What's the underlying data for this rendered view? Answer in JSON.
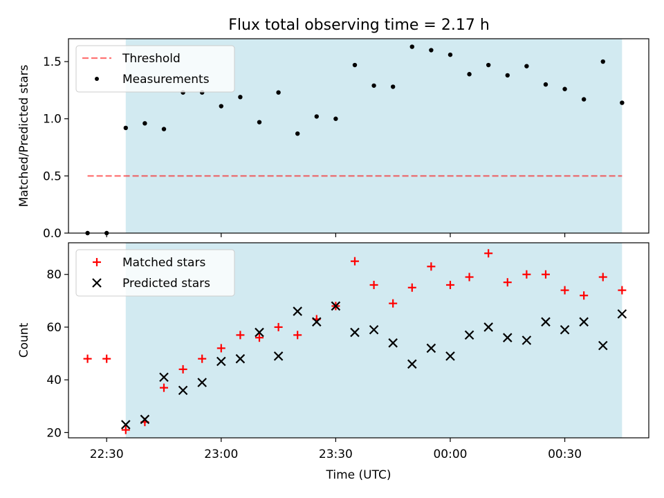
{
  "title": "Flux total observing time = 2.17 h",
  "colors": {
    "shade": "#add8e6",
    "threshold": "#ff0000",
    "matched": "#ff0000",
    "predicted": "#000000",
    "measurement": "#000000"
  },
  "chart_data": [
    {
      "type": "scatter",
      "panel": "top",
      "ylabel": "Matched/Predicted stars",
      "ylim": [
        0,
        1.7
      ],
      "yticks": [
        "0.0",
        "0.5",
        "1.0",
        "1.5"
      ],
      "ytick_values": [
        0,
        0.5,
        1.0,
        1.5
      ],
      "xlim": [
        "22:20",
        "00:52"
      ],
      "x_times": [
        "22:25",
        "22:30",
        "22:35",
        "22:40",
        "22:45",
        "22:50",
        "22:55",
        "23:00",
        "23:05",
        "23:10",
        "23:15",
        "23:20",
        "23:25",
        "23:30",
        "23:35",
        "23:40",
        "23:45",
        "23:50",
        "23:55",
        "00:00",
        "00:05",
        "00:10",
        "00:15",
        "00:20",
        "00:25",
        "00:30",
        "00:35",
        "00:40",
        "00:45"
      ],
      "shaded_interval": [
        "22:35",
        "00:45"
      ],
      "legend_position": "upper-left",
      "legend": [
        "Threshold",
        "Measurements"
      ],
      "threshold": {
        "name": "Threshold",
        "value": 0.5,
        "x_range": [
          "22:25",
          "00:45"
        ]
      },
      "series": [
        {
          "name": "Measurements",
          "marker": "dot",
          "values": [
            0.0,
            0.0,
            0.92,
            0.96,
            0.91,
            1.23,
            1.23,
            1.11,
            1.19,
            0.97,
            1.23,
            0.87,
            1.02,
            1.0,
            1.47,
            1.29,
            1.28,
            1.63,
            1.6,
            1.56,
            1.39,
            1.47,
            1.38,
            1.46,
            1.3,
            1.26,
            1.17,
            1.5,
            1.14
          ]
        }
      ]
    },
    {
      "type": "scatter",
      "panel": "bottom",
      "ylabel": "Count",
      "xlabel": "Time (UTC)",
      "ylim": [
        18,
        92
      ],
      "yticks": [
        "20",
        "40",
        "60",
        "80"
      ],
      "ytick_values": [
        20,
        40,
        60,
        80
      ],
      "xticks": [
        "22:30",
        "23:00",
        "23:30",
        "00:00",
        "00:30"
      ],
      "xlim": [
        "22:20",
        "00:52"
      ],
      "x_times": [
        "22:25",
        "22:30",
        "22:35",
        "22:40",
        "22:45",
        "22:50",
        "22:55",
        "23:00",
        "23:05",
        "23:10",
        "23:15",
        "23:20",
        "23:25",
        "23:30",
        "23:35",
        "23:40",
        "23:45",
        "23:50",
        "23:55",
        "00:00",
        "00:05",
        "00:10",
        "00:15",
        "00:20",
        "00:25",
        "00:30",
        "00:35",
        "00:40",
        "00:45"
      ],
      "shaded_interval": [
        "22:35",
        "00:45"
      ],
      "legend_position": "upper-left",
      "legend": [
        "Matched stars",
        "Predicted stars"
      ],
      "series": [
        {
          "name": "Matched stars",
          "marker": "plus",
          "values": [
            48,
            48,
            21,
            24,
            37,
            44,
            48,
            52,
            57,
            56,
            60,
            57,
            63,
            68,
            85,
            76,
            69,
            75,
            83,
            76,
            79,
            88,
            77,
            80,
            80,
            74,
            72,
            79,
            74
          ]
        },
        {
          "name": "Predicted stars",
          "marker": "x",
          "values": [
            null,
            null,
            23,
            25,
            41,
            36,
            39,
            47,
            48,
            58,
            49,
            66,
            62,
            68,
            58,
            59,
            54,
            46,
            52,
            49,
            57,
            60,
            56,
            55,
            62,
            59,
            62,
            53,
            65
          ]
        }
      ]
    }
  ]
}
